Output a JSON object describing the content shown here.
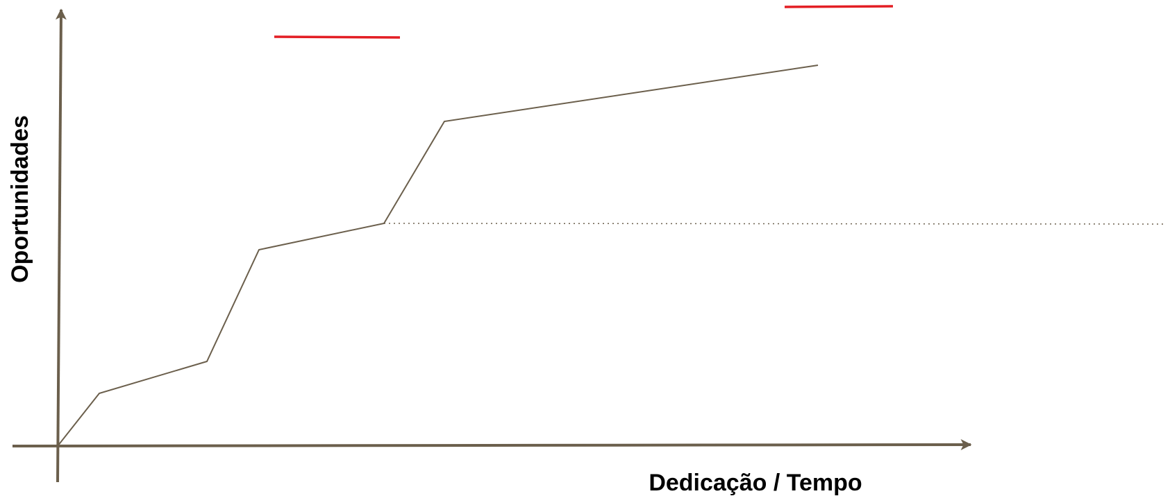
{
  "chart_data": {
    "type": "line",
    "xlabel": "Dedicação / Tempo",
    "ylabel": "Oportunidades",
    "colors": {
      "axis": "#6b5f4c",
      "line": "#6b5f4c",
      "highlight": "#e31e24",
      "dotted": "#6b5f4c"
    }
  }
}
